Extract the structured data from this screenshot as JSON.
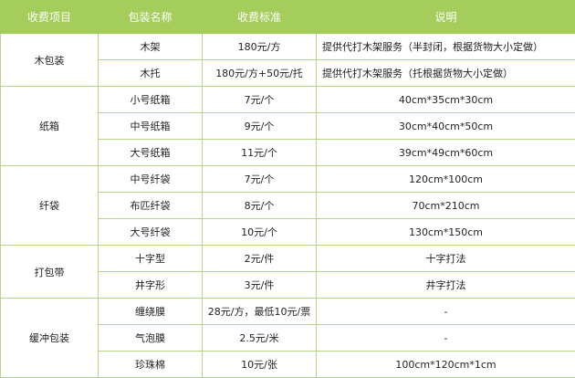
{
  "colors": {
    "header_bg": "#a4cd5c",
    "border": "#b9d687"
  },
  "headers": [
    "收费项目",
    "包装名称",
    "收费标准",
    "说明"
  ],
  "groups": [
    {
      "name": "木包装",
      "rows": [
        {
          "item": "木架",
          "price": "180元/方",
          "note": "提供代打木架服务（半封闭，根据货物大小定做）",
          "align": "left"
        },
        {
          "item": "木托",
          "price": "180元/方+50元/托",
          "note": "提供代打木架服务（托根据货物大小定做）",
          "align": "left"
        }
      ]
    },
    {
      "name": "纸箱",
      "rows": [
        {
          "item": "小号纸箱",
          "price": "7元/个",
          "note": "40cm*35cm*30cm"
        },
        {
          "item": "中号纸箱",
          "price": "9元/个",
          "note": "30cm*40cm*50cm"
        },
        {
          "item": "大号纸箱",
          "price": "11元/个",
          "note": "39cm*49cm*60cm"
        }
      ]
    },
    {
      "name": "纤袋",
      "rows": [
        {
          "item": "中号纤袋",
          "price": "7元/个",
          "note": "120cm*100cm"
        },
        {
          "item": "布匹纤袋",
          "price": "8元/个",
          "note": "70cm*210cm"
        },
        {
          "item": "大号纤袋",
          "price": "10元/个",
          "note": "130cm*150cm"
        }
      ]
    },
    {
      "name": "打包带",
      "rows": [
        {
          "item": "十字型",
          "price": "2元/件",
          "note": "十字打法"
        },
        {
          "item": "井字形",
          "price": "3元/件",
          "note": "井字打法"
        }
      ]
    },
    {
      "name": "缓冲包装",
      "rows": [
        {
          "item": "缠绕膜",
          "price": "28元/方，最低10元/票",
          "note": "-"
        },
        {
          "item": "气泡膜",
          "price": "2.5元/米",
          "note": "-"
        },
        {
          "item": "珍珠棉",
          "price": "10元/张",
          "note": "100cm*120cm*1cm"
        }
      ]
    }
  ]
}
